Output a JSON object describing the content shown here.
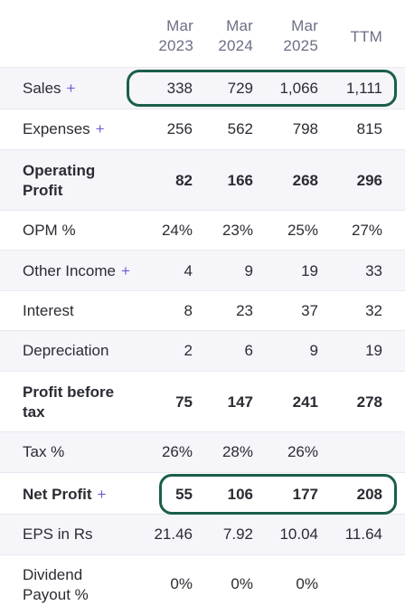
{
  "columns": [
    {
      "line1": "Mar",
      "line2": "2023"
    },
    {
      "line1": "Mar",
      "line2": "2024"
    },
    {
      "line1": "Mar",
      "line2": "2025"
    },
    {
      "line1": "",
      "line2": "TTM"
    }
  ],
  "rows": [
    {
      "label": "Sales",
      "plus": "+",
      "values": [
        "338",
        "729",
        "1,066",
        "1,111"
      ]
    },
    {
      "label": "Expenses",
      "plus": "+",
      "values": [
        "256",
        "562",
        "798",
        "815"
      ]
    },
    {
      "label_line1": "Operating",
      "label_line2": "Profit",
      "values": [
        "82",
        "166",
        "268",
        "296"
      ]
    },
    {
      "label": "OPM %",
      "values": [
        "24%",
        "23%",
        "25%",
        "27%"
      ]
    },
    {
      "label": "Other Income",
      "plus": "+",
      "values": [
        "4",
        "9",
        "19",
        "33"
      ]
    },
    {
      "label": "Interest",
      "values": [
        "8",
        "23",
        "37",
        "32"
      ]
    },
    {
      "label": "Depreciation",
      "values": [
        "2",
        "6",
        "9",
        "19"
      ]
    },
    {
      "label_line1": "Profit before",
      "label_line2": "tax",
      "values": [
        "75",
        "147",
        "241",
        "278"
      ]
    },
    {
      "label": "Tax %",
      "values": [
        "26%",
        "28%",
        "26%",
        ""
      ]
    },
    {
      "label": "Net Profit",
      "plus": "+",
      "values": [
        "55",
        "106",
        "177",
        "208"
      ]
    },
    {
      "label": "EPS in Rs",
      "values": [
        "21.46",
        "7.92",
        "10.04",
        "11.64"
      ]
    },
    {
      "label_line1": "Dividend",
      "label_line2": "Payout %",
      "values": [
        "0%",
        "0%",
        "0%",
        ""
      ]
    }
  ],
  "colors": {
    "accent_plus": "#6d5fd6",
    "highlight_border": "#1b5e4a",
    "shaded_row": "#f5f5fa"
  }
}
